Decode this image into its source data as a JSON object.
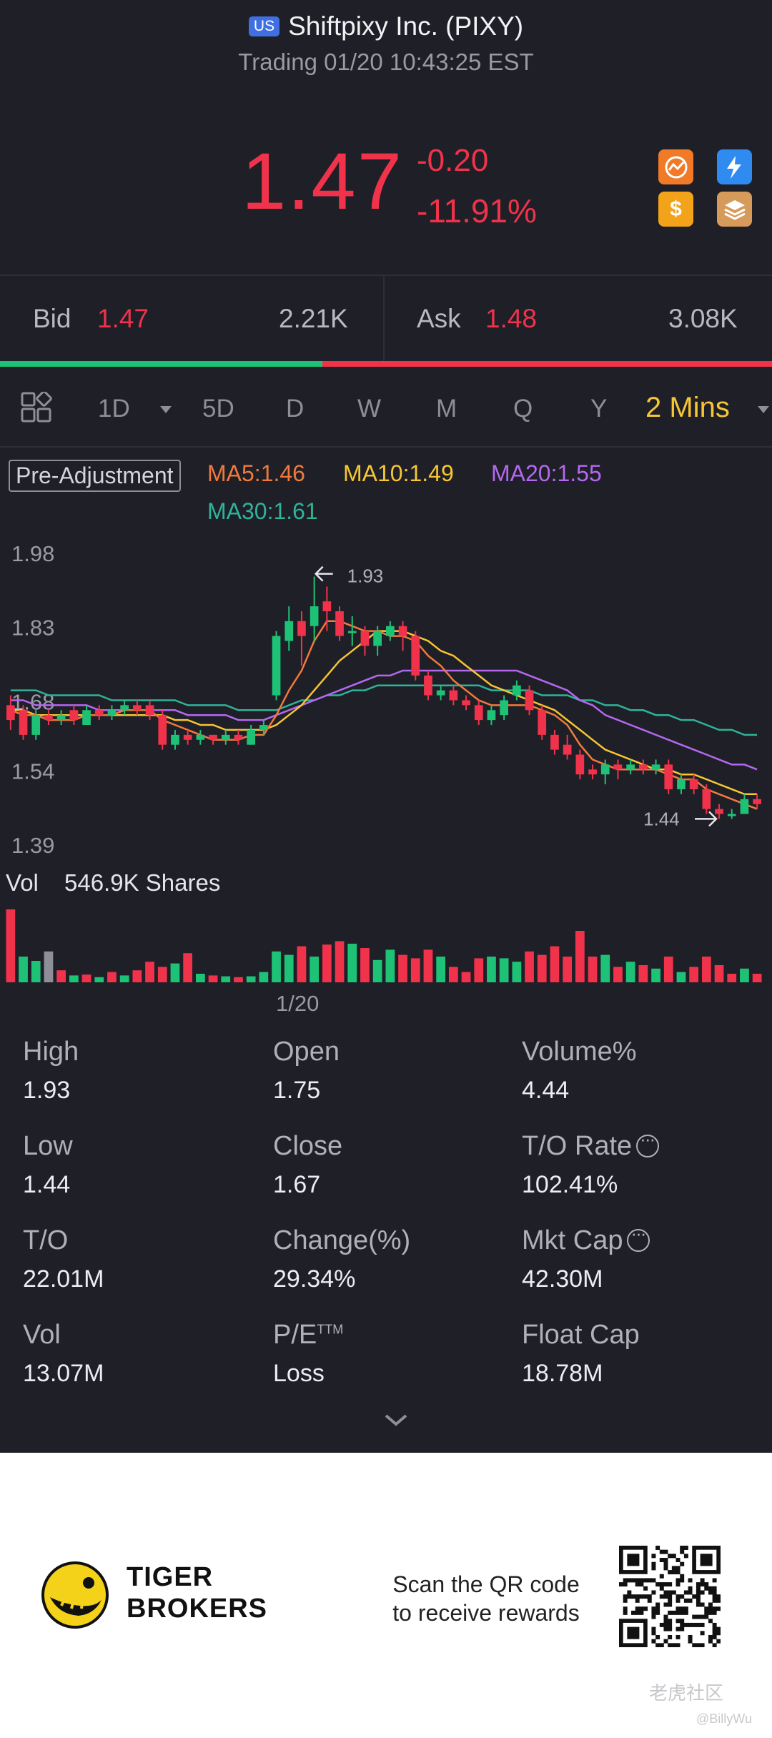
{
  "header": {
    "market_badge": "US",
    "title": "Shiftpixy Inc. (PIXY)",
    "status": "Trading 01/20 10:43:25 EST"
  },
  "quote": {
    "price": "1.47",
    "change": "-0.20",
    "change_pct": "-11.91%"
  },
  "quick_icons": [
    "signal-icon",
    "flash-icon",
    "dollar-icon",
    "layers-icon"
  ],
  "bid": {
    "label": "Bid",
    "price": "1.47",
    "volume": "2.21K"
  },
  "ask": {
    "label": "Ask",
    "price": "1.48",
    "volume": "3.08K"
  },
  "tabs": {
    "items": [
      "1D",
      "5D",
      "D",
      "W",
      "M",
      "Q",
      "Y"
    ],
    "active": "2 Mins"
  },
  "legend": {
    "pre_adjustment": "Pre-Adjustment",
    "ma5": "MA5:1.46",
    "ma10": "MA10:1.49",
    "ma20": "MA20:1.55",
    "ma30": "MA30:1.61"
  },
  "colors": {
    "up": "#1ec276",
    "down": "#f0334b",
    "ma5": "#f07a3c",
    "ma10": "#f6c633",
    "ma20": "#b468f0",
    "ma30": "#2fb39a"
  },
  "chart_data": {
    "type": "candlestick",
    "y_ticks": [
      "1.98",
      "1.83",
      "1.68",
      "1.54",
      "1.39"
    ],
    "ylim": [
      1.39,
      1.98
    ],
    "high_marker": "1.93",
    "low_marker": "1.44",
    "x_label": "1/20",
    "volume_label": "Vol",
    "volume_value": "546.9K Shares",
    "candles": [
      {
        "o": 1.67,
        "c": 1.64,
        "h": 1.69,
        "l": 1.62
      },
      {
        "o": 1.66,
        "c": 1.61,
        "h": 1.67,
        "l": 1.6
      },
      {
        "o": 1.61,
        "c": 1.65,
        "h": 1.66,
        "l": 1.6
      },
      {
        "o": 1.65,
        "c": 1.64,
        "h": 1.66,
        "l": 1.63
      },
      {
        "o": 1.64,
        "c": 1.65,
        "h": 1.66,
        "l": 1.63
      },
      {
        "o": 1.66,
        "c": 1.64,
        "h": 1.67,
        "l": 1.63
      },
      {
        "o": 1.63,
        "c": 1.66,
        "h": 1.67,
        "l": 1.63
      },
      {
        "o": 1.66,
        "c": 1.65,
        "h": 1.67,
        "l": 1.64
      },
      {
        "o": 1.65,
        "c": 1.66,
        "h": 1.67,
        "l": 1.64
      },
      {
        "o": 1.66,
        "c": 1.67,
        "h": 1.68,
        "l": 1.65
      },
      {
        "o": 1.67,
        "c": 1.66,
        "h": 1.68,
        "l": 1.65
      },
      {
        "o": 1.67,
        "c": 1.65,
        "h": 1.68,
        "l": 1.64
      },
      {
        "o": 1.65,
        "c": 1.59,
        "h": 1.66,
        "l": 1.58
      },
      {
        "o": 1.59,
        "c": 1.61,
        "h": 1.62,
        "l": 1.58
      },
      {
        "o": 1.61,
        "c": 1.6,
        "h": 1.62,
        "l": 1.59
      },
      {
        "o": 1.6,
        "c": 1.61,
        "h": 1.62,
        "l": 1.59
      },
      {
        "o": 1.61,
        "c": 1.6,
        "h": 1.61,
        "l": 1.59
      },
      {
        "o": 1.6,
        "c": 1.61,
        "h": 1.62,
        "l": 1.59
      },
      {
        "o": 1.61,
        "c": 1.6,
        "h": 1.62,
        "l": 1.59
      },
      {
        "o": 1.59,
        "c": 1.62,
        "h": 1.63,
        "l": 1.59
      },
      {
        "o": 1.62,
        "c": 1.63,
        "h": 1.64,
        "l": 1.61
      },
      {
        "o": 1.69,
        "c": 1.81,
        "h": 1.82,
        "l": 1.68
      },
      {
        "o": 1.8,
        "c": 1.84,
        "h": 1.87,
        "l": 1.78
      },
      {
        "o": 1.84,
        "c": 1.81,
        "h": 1.86,
        "l": 1.75
      },
      {
        "o": 1.83,
        "c": 1.87,
        "h": 1.93,
        "l": 1.8
      },
      {
        "o": 1.88,
        "c": 1.86,
        "h": 1.91,
        "l": 1.82
      },
      {
        "o": 1.86,
        "c": 1.81,
        "h": 1.87,
        "l": 1.8
      },
      {
        "o": 1.82,
        "c": 1.82,
        "h": 1.85,
        "l": 1.79
      },
      {
        "o": 1.82,
        "c": 1.79,
        "h": 1.83,
        "l": 1.77
      },
      {
        "o": 1.79,
        "c": 1.82,
        "h": 1.83,
        "l": 1.77
      },
      {
        "o": 1.81,
        "c": 1.83,
        "h": 1.84,
        "l": 1.8
      },
      {
        "o": 1.83,
        "c": 1.81,
        "h": 1.84,
        "l": 1.78
      },
      {
        "o": 1.81,
        "c": 1.73,
        "h": 1.82,
        "l": 1.72
      },
      {
        "o": 1.73,
        "c": 1.69,
        "h": 1.74,
        "l": 1.68
      },
      {
        "o": 1.69,
        "c": 1.7,
        "h": 1.71,
        "l": 1.68
      },
      {
        "o": 1.7,
        "c": 1.68,
        "h": 1.71,
        "l": 1.67
      },
      {
        "o": 1.68,
        "c": 1.67,
        "h": 1.69,
        "l": 1.66
      },
      {
        "o": 1.67,
        "c": 1.64,
        "h": 1.68,
        "l": 1.63
      },
      {
        "o": 1.64,
        "c": 1.66,
        "h": 1.67,
        "l": 1.63
      },
      {
        "o": 1.65,
        "c": 1.68,
        "h": 1.69,
        "l": 1.64
      },
      {
        "o": 1.69,
        "c": 1.71,
        "h": 1.72,
        "l": 1.68
      },
      {
        "o": 1.7,
        "c": 1.66,
        "h": 1.71,
        "l": 1.65
      },
      {
        "o": 1.66,
        "c": 1.61,
        "h": 1.67,
        "l": 1.6
      },
      {
        "o": 1.61,
        "c": 1.58,
        "h": 1.62,
        "l": 1.57
      },
      {
        "o": 1.59,
        "c": 1.57,
        "h": 1.61,
        "l": 1.56
      },
      {
        "o": 1.57,
        "c": 1.53,
        "h": 1.58,
        "l": 1.52
      },
      {
        "o": 1.54,
        "c": 1.53,
        "h": 1.55,
        "l": 1.52
      },
      {
        "o": 1.53,
        "c": 1.55,
        "h": 1.56,
        "l": 1.51
      },
      {
        "o": 1.55,
        "c": 1.54,
        "h": 1.56,
        "l": 1.52
      },
      {
        "o": 1.54,
        "c": 1.55,
        "h": 1.56,
        "l": 1.53
      },
      {
        "o": 1.55,
        "c": 1.54,
        "h": 1.56,
        "l": 1.53
      },
      {
        "o": 1.54,
        "c": 1.55,
        "h": 1.56,
        "l": 1.53
      },
      {
        "o": 1.55,
        "c": 1.5,
        "h": 1.56,
        "l": 1.49
      },
      {
        "o": 1.5,
        "c": 1.52,
        "h": 1.53,
        "l": 1.49
      },
      {
        "o": 1.52,
        "c": 1.5,
        "h": 1.53,
        "l": 1.49
      },
      {
        "o": 1.5,
        "c": 1.46,
        "h": 1.51,
        "l": 1.45
      },
      {
        "o": 1.46,
        "c": 1.45,
        "h": 1.47,
        "l": 1.44
      },
      {
        "o": 1.45,
        "c": 1.45,
        "h": 1.46,
        "l": 1.44
      },
      {
        "o": 1.45,
        "c": 1.48,
        "h": 1.49,
        "l": 1.45
      },
      {
        "o": 1.48,
        "c": 1.47,
        "h": 1.49,
        "l": 1.46
      }
    ],
    "ma5": [
      1.66,
      1.65,
      1.65,
      1.64,
      1.64,
      1.64,
      1.65,
      1.65,
      1.65,
      1.66,
      1.66,
      1.66,
      1.64,
      1.63,
      1.62,
      1.61,
      1.6,
      1.6,
      1.6,
      1.61,
      1.61,
      1.65,
      1.7,
      1.74,
      1.8,
      1.84,
      1.84,
      1.83,
      1.82,
      1.82,
      1.81,
      1.81,
      1.8,
      1.77,
      1.75,
      1.72,
      1.7,
      1.68,
      1.67,
      1.67,
      1.67,
      1.67,
      1.66,
      1.65,
      1.63,
      1.59,
      1.56,
      1.55,
      1.54,
      1.54,
      1.54,
      1.54,
      1.53,
      1.52,
      1.52,
      1.5,
      1.49,
      1.48,
      1.47,
      1.46
    ],
    "ma10": [
      1.66,
      1.66,
      1.65,
      1.65,
      1.65,
      1.65,
      1.65,
      1.65,
      1.65,
      1.65,
      1.65,
      1.65,
      1.65,
      1.64,
      1.64,
      1.63,
      1.63,
      1.62,
      1.62,
      1.62,
      1.62,
      1.63,
      1.65,
      1.67,
      1.7,
      1.73,
      1.76,
      1.78,
      1.8,
      1.82,
      1.82,
      1.82,
      1.81,
      1.8,
      1.78,
      1.77,
      1.75,
      1.73,
      1.71,
      1.7,
      1.69,
      1.68,
      1.67,
      1.66,
      1.64,
      1.62,
      1.6,
      1.58,
      1.57,
      1.56,
      1.55,
      1.54,
      1.54,
      1.53,
      1.53,
      1.52,
      1.51,
      1.5,
      1.49,
      1.49
    ],
    "ma20": [
      1.68,
      1.68,
      1.67,
      1.67,
      1.67,
      1.67,
      1.67,
      1.66,
      1.66,
      1.66,
      1.66,
      1.66,
      1.66,
      1.66,
      1.65,
      1.65,
      1.65,
      1.65,
      1.64,
      1.64,
      1.64,
      1.65,
      1.66,
      1.67,
      1.68,
      1.69,
      1.7,
      1.71,
      1.72,
      1.73,
      1.73,
      1.74,
      1.74,
      1.74,
      1.74,
      1.74,
      1.74,
      1.74,
      1.74,
      1.74,
      1.74,
      1.73,
      1.72,
      1.71,
      1.7,
      1.68,
      1.67,
      1.65,
      1.64,
      1.63,
      1.62,
      1.61,
      1.6,
      1.59,
      1.58,
      1.57,
      1.56,
      1.55,
      1.55,
      1.54
    ],
    "ma30": [
      1.7,
      1.7,
      1.7,
      1.69,
      1.69,
      1.69,
      1.69,
      1.69,
      1.68,
      1.68,
      1.68,
      1.68,
      1.68,
      1.68,
      1.67,
      1.67,
      1.67,
      1.67,
      1.66,
      1.66,
      1.66,
      1.66,
      1.67,
      1.68,
      1.68,
      1.69,
      1.69,
      1.7,
      1.7,
      1.71,
      1.71,
      1.71,
      1.71,
      1.71,
      1.71,
      1.71,
      1.71,
      1.71,
      1.7,
      1.7,
      1.7,
      1.7,
      1.69,
      1.69,
      1.69,
      1.68,
      1.68,
      1.67,
      1.67,
      1.66,
      1.66,
      1.65,
      1.65,
      1.64,
      1.64,
      1.63,
      1.62,
      1.62,
      1.61,
      1.61
    ],
    "volumes": [
      0.85,
      0.3,
      0.25,
      0.36,
      0.14,
      0.08,
      0.09,
      0.06,
      0.12,
      0.08,
      0.14,
      0.24,
      0.18,
      0.22,
      0.34,
      0.1,
      0.08,
      0.07,
      0.06,
      0.07,
      0.12,
      0.36,
      0.32,
      0.42,
      0.3,
      0.44,
      0.48,
      0.45,
      0.4,
      0.26,
      0.38,
      0.32,
      0.28,
      0.38,
      0.3,
      0.18,
      0.12,
      0.28,
      0.3,
      0.28,
      0.24,
      0.36,
      0.32,
      0.42,
      0.3,
      0.6,
      0.3,
      0.32,
      0.18,
      0.24,
      0.2,
      0.16,
      0.3,
      0.12,
      0.18,
      0.3,
      0.2,
      0.1,
      0.16,
      0.1
    ],
    "volume_dir": [
      "d",
      "u",
      "u",
      "n",
      "d",
      "u",
      "d",
      "u",
      "d",
      "u",
      "d",
      "d",
      "d",
      "u",
      "d",
      "u",
      "d",
      "u",
      "d",
      "u",
      "u",
      "u",
      "u",
      "d",
      "u",
      "d",
      "d",
      "u",
      "d",
      "u",
      "u",
      "d",
      "d",
      "d",
      "u",
      "d",
      "d",
      "d",
      "u",
      "u",
      "u",
      "d",
      "d",
      "d",
      "d",
      "d",
      "d",
      "u",
      "d",
      "u",
      "d",
      "u",
      "d",
      "u",
      "d",
      "d",
      "d",
      "d",
      "u",
      "d"
    ]
  },
  "stats": [
    [
      {
        "label": "High",
        "value": "1.93"
      },
      {
        "label": "Open",
        "value": "1.75"
      },
      {
        "label": "Volume%",
        "value": "4.44"
      }
    ],
    [
      {
        "label": "Low",
        "value": "1.44"
      },
      {
        "label": "Close",
        "value": "1.67"
      },
      {
        "label": "T/O Rate",
        "value": "102.41%",
        "info": true
      }
    ],
    [
      {
        "label": "T/O",
        "value": "22.01M"
      },
      {
        "label": "Change(%)",
        "value": "29.34%"
      },
      {
        "label": "Mkt Cap",
        "value": "42.30M",
        "info": true
      }
    ],
    [
      {
        "label": "Vol",
        "value": "13.07M"
      },
      {
        "label": "P/E",
        "sup": "TTM",
        "value": "Loss"
      },
      {
        "label": "Float Cap",
        "value": "18.78M"
      }
    ]
  ],
  "footer": {
    "brand_line1": "TIGER",
    "brand_line2": "BROKERS",
    "scan_line1": "Scan the QR code",
    "scan_line2": "to receive rewards",
    "watermark": "老虎社区",
    "watermark_user": "@BillyWu"
  }
}
